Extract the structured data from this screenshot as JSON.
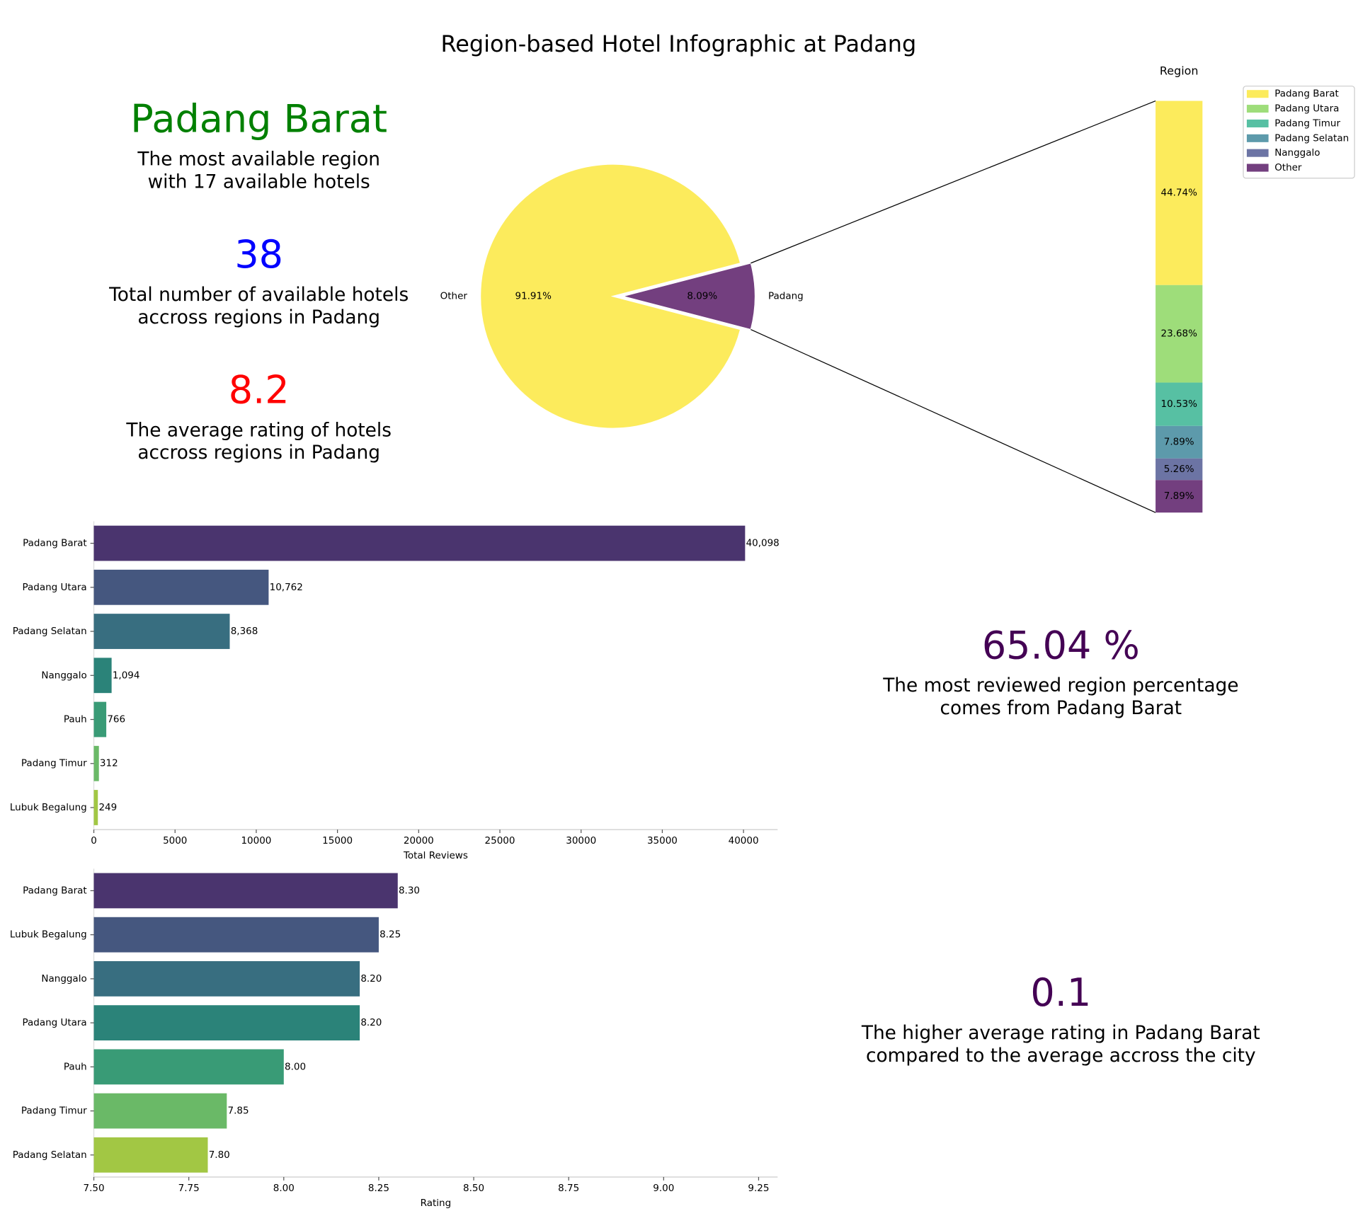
{
  "title": "Region-based Hotel Infographic at Padang",
  "highlights": [
    {
      "headline": "Padang Barat",
      "color": "#008000",
      "lines": [
        "The most available region",
        "with 17 available hotels"
      ]
    },
    {
      "headline": "38",
      "color": "#0000ff",
      "lines": [
        "Total number of available hotels",
        "accross regions in Padang"
      ]
    },
    {
      "headline": "8.2",
      "color": "#ff0000",
      "lines": [
        "The average rating of hotels",
        "accross regions in Padang"
      ]
    },
    {
      "headline": "65.04 %",
      "color": "#440154",
      "lines": [
        "The most reviewed region percentage",
        "comes from Padang Barat"
      ]
    },
    {
      "headline": "0.1",
      "color": "#440154",
      "lines": [
        "The higher average rating in Padang Barat",
        "compared to the average accross the city"
      ]
    }
  ],
  "chart_data": [
    {
      "type": "pie",
      "categories": [
        "Other",
        "Padang"
      ],
      "values": [
        91.91,
        8.09
      ],
      "value_labels": [
        "91.91%",
        "8.09%"
      ],
      "colors": [
        "#fceb5c",
        "#733f7f"
      ]
    },
    {
      "type": "stacked_bar",
      "title": "Region",
      "series": [
        {
          "name": "Padang Barat",
          "color": "#fceb5c",
          "values": [
            44.74
          ],
          "value_labels": [
            "44.74%"
          ]
        },
        {
          "name": "Padang Utara",
          "color": "#9edd7a",
          "values": [
            23.68
          ],
          "value_labels": [
            "23.68%"
          ]
        },
        {
          "name": "Padang Timur",
          "color": "#57c0a3",
          "values": [
            10.53
          ],
          "value_labels": [
            "10.53%"
          ]
        },
        {
          "name": "Padang Selatan",
          "color": "#5d9aab",
          "values": [
            7.89
          ],
          "value_labels": [
            "7.89%"
          ]
        },
        {
          "name": "Nanggalo",
          "color": "#6c74a4",
          "values": [
            5.26
          ],
          "value_labels": [
            "5.26%"
          ]
        },
        {
          "name": "Other",
          "color": "#733f7f",
          "values": [
            7.89
          ],
          "value_labels": [
            "7.89%"
          ]
        }
      ],
      "legend": "upper right"
    },
    {
      "type": "bar",
      "orientation": "horizontal",
      "xlabel": "Total Reviews",
      "categories": [
        "Padang Barat",
        "Padang Utara",
        "Padang Selatan",
        "Nanggalo",
        "Pauh",
        "Padang Timur",
        "Lubuk Begalung"
      ],
      "values": [
        40098,
        10762,
        8368,
        1094,
        766,
        312,
        249
      ],
      "value_labels": [
        "40,098",
        "10,762",
        "8,368",
        "1,094",
        "766",
        "312",
        "249"
      ],
      "colors": [
        "#4a346e",
        "#45577f",
        "#386e80",
        "#2b8379",
        "#399b76",
        "#6ab967",
        "#a2c744"
      ],
      "xlim": [
        0,
        42100
      ],
      "xticks": [
        0,
        5000,
        10000,
        15000,
        20000,
        25000,
        30000,
        35000,
        40000
      ]
    },
    {
      "type": "bar",
      "orientation": "horizontal",
      "xlabel": "Rating",
      "categories": [
        "Padang Barat",
        "Lubuk Begalung",
        "Nanggalo",
        "Padang Utara",
        "Pauh",
        "Padang Timur",
        "Padang Selatan"
      ],
      "values": [
        8.3,
        8.25,
        8.2,
        8.2,
        8.0,
        7.85,
        7.8
      ],
      "value_labels": [
        "8.30",
        "8.25",
        "8.20",
        "8.20",
        "8.00",
        "7.85",
        "7.80"
      ],
      "colors": [
        "#4a346e",
        "#45577f",
        "#386e80",
        "#2b8379",
        "#399b76",
        "#6ab967",
        "#a2c744"
      ],
      "xlim": [
        7.5,
        9.3
      ],
      "xticks": [
        {
          "value": 7.5,
          "label": "7.50"
        },
        {
          "value": 7.75,
          "label": "7.75"
        },
        {
          "value": 8.0,
          "label": "8.00"
        },
        {
          "value": 8.25,
          "label": "8.25"
        },
        {
          "value": 8.5,
          "label": "8.50"
        },
        {
          "value": 8.75,
          "label": "8.75"
        },
        {
          "value": 9.0,
          "label": "9.00"
        },
        {
          "value": 9.25,
          "label": "9.25"
        }
      ]
    }
  ]
}
